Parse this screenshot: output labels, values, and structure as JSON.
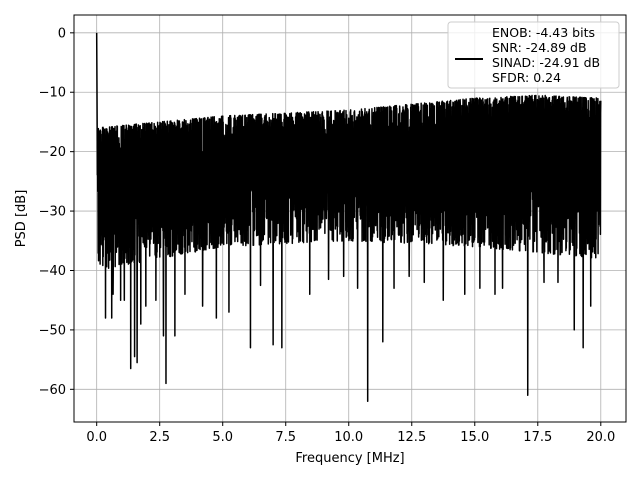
{
  "chart_data": {
    "type": "line",
    "xlabel": "Frequency [MHz]",
    "ylabel": "PSD [dB]",
    "xlim": [
      -0.9,
      21.0
    ],
    "ylim": [
      -65.5,
      3.0
    ],
    "xticks": [
      0.0,
      2.5,
      5.0,
      7.5,
      10.0,
      12.5,
      15.0,
      17.5,
      20.0
    ],
    "xtick_labels": [
      "0.0",
      "2.5",
      "5.0",
      "7.5",
      "10.0",
      "12.5",
      "15.0",
      "17.5",
      "20.0"
    ],
    "yticks": [
      0,
      -10,
      -20,
      -30,
      -40,
      -50,
      -60
    ],
    "ytick_labels": [
      "0",
      "−10",
      "−20",
      "−30",
      "−40",
      "−50",
      "−60"
    ],
    "grid": true,
    "legend_position": "top-right",
    "line_color": "#000000",
    "series": [
      {
        "legend_lines": [
          "ENOB: -4.43 bits",
          "SNR: -24.89 dB",
          "SINAD: -24.91 dB",
          "SFDR: 0.24"
        ],
        "peak": {
          "x": 0.0,
          "y": 0.0
        },
        "baseline": -22,
        "upper_envelope": [
          [
            0.0,
            -16
          ],
          [
            2.5,
            -15
          ],
          [
            5.0,
            -14
          ],
          [
            7.5,
            -13.5
          ],
          [
            10.0,
            -13
          ],
          [
            12.5,
            -12
          ],
          [
            15.0,
            -11
          ],
          [
            17.5,
            -10.5
          ],
          [
            20.0,
            -11
          ]
        ],
        "lower_envelope": [
          [
            0.0,
            -40
          ],
          [
            5.0,
            -36
          ],
          [
            10.0,
            -35
          ],
          [
            15.0,
            -36
          ],
          [
            20.0,
            -38
          ]
        ],
        "dips": [
          [
            0.35,
            -48
          ],
          [
            0.6,
            -48
          ],
          [
            0.65,
            -44
          ],
          [
            0.95,
            -45
          ],
          [
            1.1,
            -45
          ],
          [
            1.35,
            -56.5
          ],
          [
            1.5,
            -54.5
          ],
          [
            1.6,
            -55.5
          ],
          [
            1.75,
            -49
          ],
          [
            1.95,
            -46
          ],
          [
            2.35,
            -45
          ],
          [
            2.65,
            -51
          ],
          [
            2.75,
            -59
          ],
          [
            3.1,
            -51
          ],
          [
            3.5,
            -44
          ],
          [
            4.2,
            -46
          ],
          [
            4.75,
            -48
          ],
          [
            5.25,
            -47
          ],
          [
            6.1,
            -53
          ],
          [
            6.5,
            -42.5
          ],
          [
            7.0,
            -52.5
          ],
          [
            7.35,
            -53
          ],
          [
            8.45,
            -44
          ],
          [
            9.2,
            -41.5
          ],
          [
            9.8,
            -41
          ],
          [
            10.35,
            -43
          ],
          [
            10.75,
            -62
          ],
          [
            11.35,
            -52
          ],
          [
            11.8,
            -43
          ],
          [
            12.4,
            -41
          ],
          [
            13.0,
            -42
          ],
          [
            13.75,
            -45
          ],
          [
            14.6,
            -44
          ],
          [
            15.2,
            -43
          ],
          [
            15.8,
            -44
          ],
          [
            16.1,
            -43
          ],
          [
            17.1,
            -61
          ],
          [
            17.75,
            -42
          ],
          [
            18.3,
            -42
          ],
          [
            18.95,
            -50
          ],
          [
            19.3,
            -53
          ],
          [
            19.6,
            -46
          ]
        ]
      }
    ]
  }
}
